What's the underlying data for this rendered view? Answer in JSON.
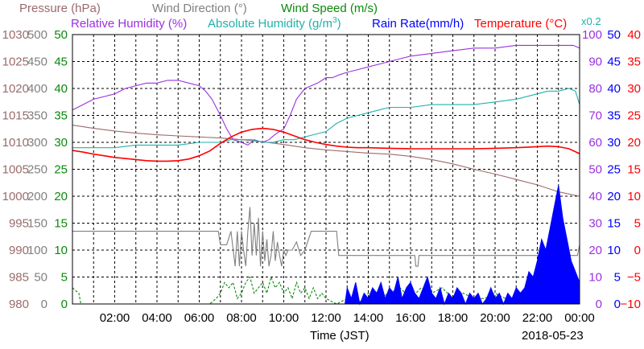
{
  "chart_data": {
    "type": "line",
    "date": "2018-05-23",
    "xlabel": "Time (JST)",
    "x_ticks": [
      "02:00",
      "04:00",
      "06:00",
      "08:00",
      "10:00",
      "12:00",
      "14:00",
      "16:00",
      "18:00",
      "20:00",
      "22:00",
      "00:00"
    ],
    "x_range_hours": [
      0,
      24
    ],
    "grid": true,
    "colors": {
      "pressure": "#9b6b6b",
      "wind_direction": "#808080",
      "wind_speed": "#0a8a0a",
      "relative_humidity": "#9b30e0",
      "absolute_humidity": "#20b2aa",
      "rain_rate": "#0000ff",
      "temperature": "#ff0000"
    },
    "legend": {
      "pressure": "Pressure (hPa)",
      "wind_direction": "Wind Direction (°)",
      "wind_speed": "Wind Speed (m/s)",
      "relative_humidity": "Relative Humidity (%)",
      "absolute_humidity_pre": "Absolute Humidity (g/m",
      "absolute_humidity_sup": "3",
      "absolute_humidity_post": ")",
      "rain_rate": "Rain Rate(mm/h)",
      "temperature": "Temperature (°C)",
      "scale_note": "x0.2"
    },
    "axes": {
      "pressure": {
        "range": [
          980,
          1030
        ],
        "ticks": [
          "980",
          "985",
          "990",
          "995",
          "1000",
          "1005",
          "1010",
          "1015",
          "1020",
          "1025",
          "1030"
        ]
      },
      "wind_direction": {
        "range": [
          0,
          500
        ],
        "ticks": [
          "0",
          "50",
          "100",
          "150",
          "200",
          "250",
          "300",
          "350",
          "400",
          "450",
          "500"
        ]
      },
      "wind_speed": {
        "range": [
          0,
          50
        ],
        "ticks": [
          "0",
          "5",
          "10",
          "15",
          "20",
          "25",
          "30",
          "35",
          "40",
          "45",
          "50"
        ]
      },
      "relative_humidity": {
        "range": [
          0,
          100
        ],
        "ticks": [
          "0",
          "10",
          "20",
          "30",
          "40",
          "50",
          "60",
          "70",
          "80",
          "90",
          "100"
        ]
      },
      "rain_rate": {
        "range": [
          0,
          50
        ],
        "ticks": [
          "0",
          "5",
          "10",
          "15",
          "20",
          "25",
          "30",
          "35",
          "40",
          "45",
          "50"
        ]
      },
      "temperature": {
        "range": [
          -10,
          40
        ],
        "ticks": [
          "−10",
          "−5",
          "0",
          "5",
          "10",
          "15",
          "20",
          "25",
          "30",
          "35",
          "40"
        ]
      }
    },
    "series": [
      {
        "name": "Pressure (hPa)",
        "key": "pressure",
        "axis": "pressure",
        "x": [
          0,
          1,
          2,
          3,
          4,
          5,
          6,
          7,
          8,
          9,
          10,
          11,
          12,
          13,
          14,
          15,
          16,
          17,
          18,
          19,
          20,
          21,
          22,
          23,
          24
        ],
        "y": [
          1013.2,
          1012.6,
          1012.1,
          1011.7,
          1011.4,
          1011.2,
          1011.0,
          1010.8,
          1010.5,
          1010.1,
          1009.6,
          1009.0,
          1008.6,
          1008.3,
          1008.0,
          1007.8,
          1007.4,
          1006.8,
          1006.0,
          1005.0,
          1004.1,
          1003.1,
          1002.1,
          1000.8,
          1000.0
        ]
      },
      {
        "name": "Wind Direction (°)",
        "key": "wind_direction",
        "axis": "wind_direction",
        "x": [
          0,
          6.9,
          7.0,
          7.3,
          7.5,
          7.7,
          7.8,
          7.9,
          8.0,
          8.1,
          8.2,
          8.3,
          8.4,
          8.5,
          8.6,
          8.7,
          8.8,
          8.9,
          9.0,
          9.1,
          9.2,
          9.3,
          9.4,
          9.5,
          9.6,
          9.7,
          9.8,
          9.9,
          10.0,
          10.1,
          10.2,
          10.4,
          10.6,
          10.8,
          11.0,
          11.3,
          11.5,
          12.5,
          12.6,
          16.2,
          16.25,
          16.35,
          16.4,
          23.9,
          24.0
        ],
        "y": [
          135,
          135,
          110,
          110,
          135,
          70,
          135,
          70,
          135,
          100,
          70,
          135,
          180,
          90,
          150,
          90,
          160,
          70,
          135,
          80,
          120,
          70,
          90,
          135,
          80,
          115,
          90,
          70,
          100,
          90,
          100,
          100,
          115,
          90,
          100,
          135,
          135,
          135,
          90,
          90,
          70,
          70,
          90,
          90,
          110
        ]
      },
      {
        "name": "Wind Speed (m/s)",
        "key": "wind_speed",
        "axis": "wind_speed",
        "x": [
          0,
          0.3,
          0.4,
          6.5,
          6.8,
          7.0,
          7.2,
          7.4,
          7.6,
          7.8,
          8.0,
          8.2,
          8.4,
          8.6,
          8.8,
          9.0,
          9.2,
          9.4,
          9.6,
          9.8,
          10.0,
          10.2,
          10.4,
          10.6,
          10.8,
          11.0,
          11.2,
          11.4,
          11.6,
          11.8,
          12.0,
          12.5,
          13.0,
          13.5,
          14.0,
          14.5,
          15.0,
          15.5,
          16.0,
          16.5,
          17.0,
          17.5,
          18.0,
          18.5,
          19.0,
          19.5,
          20.0,
          20.5,
          21.0,
          21.5,
          22.0,
          23.0,
          24.0
        ],
        "y": [
          3,
          2,
          0,
          0,
          1,
          2,
          4,
          3,
          4,
          1,
          2,
          4,
          5,
          2,
          3,
          4,
          2,
          5,
          3,
          4,
          2,
          3,
          1,
          4,
          2,
          3,
          1,
          3,
          1,
          2,
          1,
          0,
          1,
          0,
          2,
          1,
          2,
          3,
          1,
          3,
          2,
          3,
          1,
          2,
          1,
          1,
          2,
          1,
          1,
          0,
          0,
          0,
          0
        ]
      },
      {
        "name": "Relative Humidity (%)",
        "key": "relative_humidity",
        "axis": "relative_humidity",
        "x": [
          0,
          0.5,
          1,
          1.5,
          2,
          2.5,
          3,
          3.5,
          4,
          4.5,
          5,
          5.5,
          6,
          6.3,
          6.6,
          7,
          7.3,
          7.6,
          8,
          8.3,
          8.6,
          9,
          9.3,
          9.6,
          10,
          10.3,
          10.6,
          11,
          11.3,
          11.6,
          12,
          12.3,
          12.6,
          13,
          13.5,
          14,
          14.5,
          15,
          15.5,
          16,
          17,
          18,
          19,
          20,
          21,
          22,
          23,
          23.7,
          24
        ],
        "y": [
          72,
          74,
          76,
          77,
          78,
          80,
          81,
          82,
          82,
          83,
          83,
          82,
          81,
          79,
          76,
          70,
          65,
          61,
          60,
          59,
          61,
          60,
          61,
          63,
          65,
          70,
          76,
          80,
          81,
          82,
          84,
          84,
          85,
          86,
          87,
          88,
          89,
          90,
          91,
          92,
          93,
          94,
          95,
          95,
          96,
          96,
          96,
          96,
          95
        ]
      },
      {
        "name": "Absolute Humidity (g/m3)",
        "key": "absolute_humidity",
        "axis": "relative_humidity",
        "x": [
          0,
          1,
          2,
          3,
          4,
          5,
          6,
          6.5,
          7,
          7.5,
          8,
          8.5,
          9,
          9.5,
          10,
          10.5,
          11,
          11.5,
          12,
          12.5,
          13,
          13.5,
          14,
          14.5,
          15,
          16,
          17,
          18,
          19,
          20,
          21,
          22,
          22.5,
          23,
          23.5,
          23.8,
          24
        ],
        "y": [
          58,
          58,
          58,
          59,
          59,
          59,
          60,
          60,
          60,
          61,
          61,
          61,
          60,
          60,
          61,
          61,
          62,
          63,
          64,
          67,
          69,
          70,
          71,
          72,
          73,
          73,
          74,
          74,
          74,
          75,
          76,
          78,
          79,
          79,
          80,
          79,
          74
        ]
      },
      {
        "name": "Rain Rate(mm/h)",
        "key": "rain_rate",
        "axis": "rain_rate",
        "x": [
          0,
          12.9,
          13.0,
          13.2,
          13.4,
          13.6,
          13.8,
          14.0,
          14.2,
          14.4,
          14.6,
          14.8,
          15.0,
          15.2,
          15.4,
          15.6,
          15.8,
          16.0,
          16.2,
          16.4,
          16.6,
          16.8,
          17.0,
          17.2,
          17.4,
          17.6,
          17.8,
          18.0,
          18.2,
          18.4,
          18.6,
          18.8,
          19.0,
          19.2,
          19.4,
          19.6,
          19.8,
          20.0,
          20.2,
          20.4,
          20.6,
          20.8,
          21.0,
          21.2,
          21.4,
          21.6,
          21.8,
          22.0,
          22.2,
          22.4,
          22.6,
          22.8,
          23.0,
          23.2,
          23.4,
          23.6,
          23.8,
          24.0
        ],
        "y": [
          0,
          0,
          3,
          1,
          4,
          0,
          2,
          1,
          3,
          2,
          4,
          1,
          3,
          2,
          5,
          1,
          3,
          4,
          2,
          1,
          3,
          5,
          2,
          1,
          3,
          0,
          2,
          1,
          3,
          2,
          0,
          2,
          1,
          2,
          0,
          1,
          3,
          1,
          2,
          0,
          2,
          1,
          3,
          2,
          3,
          6,
          5,
          8,
          12,
          10,
          14,
          18,
          22,
          16,
          12,
          8,
          6,
          4
        ]
      },
      {
        "name": "Temperature (°C)",
        "key": "temperature",
        "axis": "temperature",
        "x": [
          0,
          0.5,
          1,
          1.5,
          2,
          2.5,
          3,
          3.5,
          4,
          4.5,
          5,
          5.5,
          6,
          6.5,
          7,
          7.5,
          8,
          8.5,
          9,
          9.5,
          10,
          10.5,
          11,
          11.5,
          12,
          12.5,
          13,
          13.5,
          14,
          15,
          16,
          17,
          18,
          19,
          20,
          21,
          22,
          22.5,
          23,
          23.5,
          24
        ],
        "y": [
          18.5,
          18.2,
          17.8,
          17.5,
          17.2,
          17.0,
          16.8,
          16.6,
          16.5,
          16.5,
          16.6,
          16.9,
          17.5,
          18.4,
          19.8,
          21.0,
          21.9,
          22.4,
          22.6,
          22.4,
          21.9,
          21.2,
          20.5,
          20.0,
          19.6,
          19.3,
          19.1,
          19.0,
          19.0,
          18.9,
          18.8,
          18.8,
          18.8,
          18.8,
          18.9,
          19.0,
          19.2,
          19.3,
          19.2,
          18.8,
          17.9
        ]
      }
    ]
  }
}
